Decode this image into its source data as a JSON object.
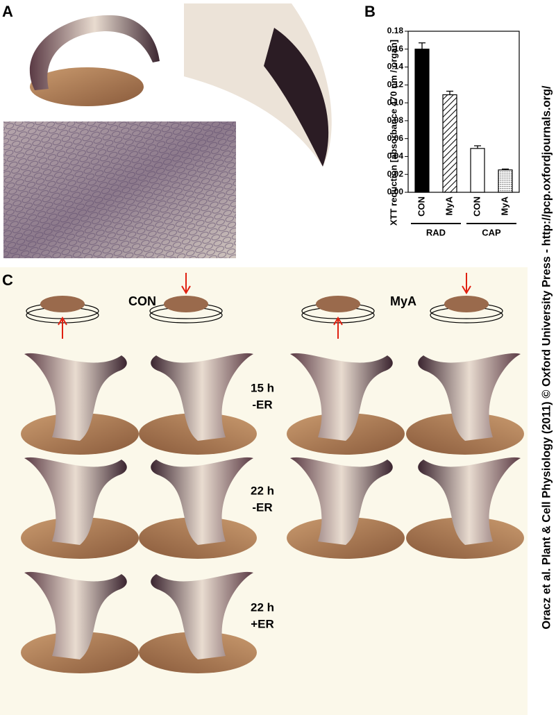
{
  "panel_labels": [
    "A",
    "B",
    "C"
  ],
  "chart_data": {
    "type": "bar",
    "y_label": "XTT reduction [absorbance 470 nm / organ]",
    "categories": [
      "CON",
      "MyA",
      "CON",
      "MyA"
    ],
    "groups": [
      "RAD",
      "CAP"
    ],
    "values": [
      0.16,
      0.109,
      0.049,
      0.025
    ],
    "errors": [
      0.007,
      0.004,
      0.003,
      0.001
    ],
    "patterns": [
      "solid",
      "hatch",
      "empty",
      "dots"
    ],
    "color": "#000000",
    "ylim": [
      0,
      0.18
    ],
    "yticks": [
      {
        "value": 0,
        "label": "0.00"
      },
      {
        "value": 0.02,
        "label": "0.02"
      },
      {
        "value": 0.04,
        "label": "0.04"
      },
      {
        "value": 0.06,
        "label": "0.06"
      },
      {
        "value": 0.08,
        "label": "0.08"
      },
      {
        "value": 0.1,
        "label": "0.10"
      },
      {
        "value": 0.12,
        "label": "0.12"
      },
      {
        "value": 0.14,
        "label": "0.14"
      },
      {
        "value": 0.16,
        "label": "0.16"
      },
      {
        "value": 0.18,
        "label": "0.18"
      }
    ]
  },
  "panel_c": {
    "treatments": [
      "CON",
      "MyA"
    ],
    "conditions": [
      {
        "time": "15 h",
        "er": "-ER"
      },
      {
        "time": "22 h",
        "er": "-ER"
      },
      {
        "time": "22 h",
        "er": "+ER"
      }
    ]
  },
  "credit": "Oracz et al. Plant & Cell Physiology (2011) © Oxford University Press - http://pcp.oxfordjournals.org/"
}
